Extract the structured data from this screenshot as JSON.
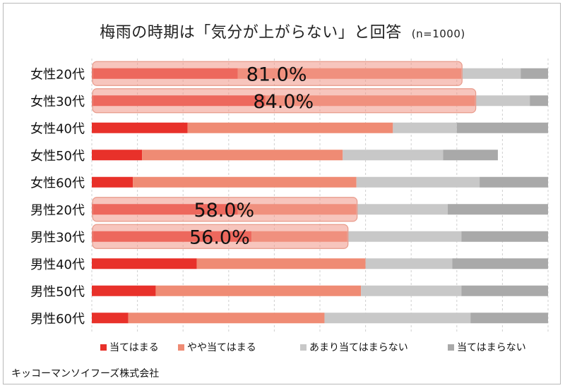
{
  "chart_data": {
    "type": "bar",
    "stacked": true,
    "orientation": "horizontal",
    "title": "梅雨の時期は「気分が上がらない」と回答",
    "sample_note": "(n=1000)",
    "categories": [
      "女性20代",
      "女性30代",
      "女性40代",
      "女性50代",
      "女性60代",
      "男性20代",
      "男性30代",
      "男性40代",
      "男性50代",
      "男性60代"
    ],
    "series": [
      {
        "name": "当てはまる",
        "color": "#e8312a",
        "values": [
          32,
          38,
          21,
          11,
          9,
          32,
          35,
          23,
          14,
          8
        ]
      },
      {
        "name": "やや当てはまる",
        "color": "#ef8b74",
        "values": [
          49,
          46,
          45,
          44,
          49,
          26,
          21,
          37,
          45,
          43
        ]
      },
      {
        "name": "あまり当てはまらない",
        "color": "#c8c8c8",
        "values": [
          13,
          12,
          14,
          22,
          27,
          20,
          25,
          19,
          22,
          32
        ]
      },
      {
        "name": "当てはまらない",
        "color": "#a9a9a9",
        "values": [
          6,
          4,
          20,
          12,
          15,
          22,
          19,
          21,
          19,
          17
        ]
      }
    ],
    "xlim": [
      0,
      100
    ],
    "grid": true,
    "legend": "bottom",
    "highlights": [
      {
        "index": 0,
        "label": "81.0%",
        "value": 81
      },
      {
        "index": 1,
        "label": "84.0%",
        "value": 84
      },
      {
        "index": 5,
        "label": "58.0%",
        "value": 58
      },
      {
        "index": 6,
        "label": "56.0%",
        "value": 56
      }
    ]
  },
  "credit": "キッコーマンソイフーズ株式会社"
}
